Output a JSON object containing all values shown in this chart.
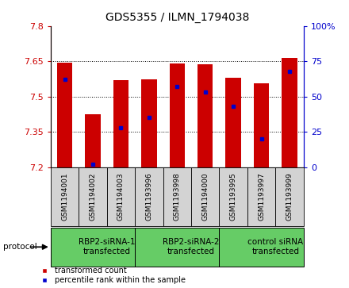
{
  "title": "GDS5355 / ILMN_1794038",
  "samples": [
    "GSM1194001",
    "GSM1194002",
    "GSM1194003",
    "GSM1193996",
    "GSM1193998",
    "GSM1194000",
    "GSM1193995",
    "GSM1193997",
    "GSM1193999"
  ],
  "bar_values": [
    7.644,
    7.425,
    7.568,
    7.572,
    7.64,
    7.636,
    7.578,
    7.557,
    7.663
  ],
  "percentile_values": [
    62,
    2,
    28,
    35,
    57,
    53,
    43,
    20,
    68
  ],
  "ymin": 7.2,
  "ymax": 7.8,
  "yticks": [
    7.2,
    7.35,
    7.5,
    7.65,
    7.8
  ],
  "right_yticks": [
    0,
    25,
    50,
    75,
    100
  ],
  "bar_color": "#cc0000",
  "percentile_color": "#0000cc",
  "groups": [
    {
      "label": "RBP2-siRNA-1\ntransfected",
      "start": 0,
      "end": 3,
      "color": "#66cc66"
    },
    {
      "label": "RBP2-siRNA-2\ntransfected",
      "start": 3,
      "end": 6,
      "color": "#66cc66"
    },
    {
      "label": "control siRNA\ntransfected",
      "start": 6,
      "end": 9,
      "color": "#66cc66"
    }
  ],
  "protocol_label": "protocol",
  "left_axis_color": "#cc0000",
  "right_axis_color": "#0000cc",
  "bar_width": 0.55,
  "sample_bg_color": "#d3d3d3",
  "plot_bg_color": "#ffffff",
  "grid_ticks": [
    7.35,
    7.5,
    7.65
  ]
}
